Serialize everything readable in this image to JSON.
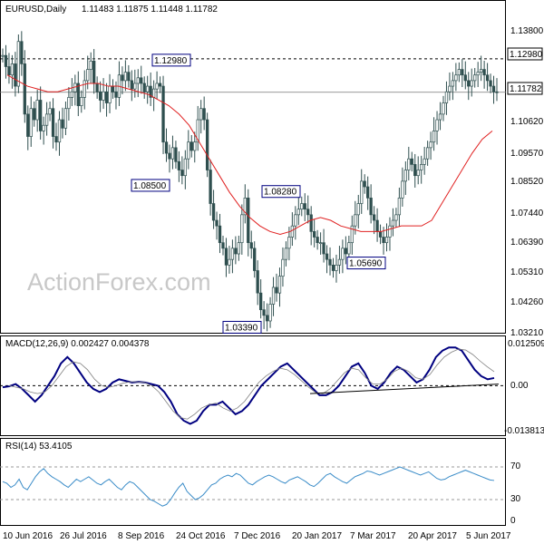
{
  "chart_data": [
    {
      "type": "candlestick",
      "panel": "price",
      "title": "EURUSD,Daily",
      "ohlc_label": "1.11483 1.11875 1.11448 1.11782",
      "watermark": "ActionForex.com",
      "ylim": [
        1.0321,
        1.145
      ],
      "y_ticks": [
        "1.13800",
        "1.12980",
        "1.11782",
        "1.10620",
        "1.09570",
        "1.08520",
        "1.07440",
        "1.06390",
        "1.05310",
        "1.04260",
        "1.03210"
      ],
      "x_ticks": [
        "10 Jun 2016",
        "26 Jul 2016",
        "8 Sep 2016",
        "24 Oct 2016",
        "7 Dec 2016",
        "20 Jan 2017",
        "7 Mar 2017",
        "20 Apr 2017",
        "5 Jun 2017"
      ],
      "resistance_line": 1.1298,
      "price_line": 1.11782,
      "price_label": "1.11782",
      "price_level_label": "1.12980",
      "annotations": [
        {
          "text": "1.12980",
          "value": 1.1298
        },
        {
          "text": "1.08500",
          "value": 1.085
        },
        {
          "text": "1.08280",
          "value": 1.0828
        },
        {
          "text": "1.03390",
          "value": 1.0339
        },
        {
          "text": "1.05690",
          "value": 1.0569
        }
      ],
      "close_series": [
        1.131,
        1.127,
        1.124,
        1.128,
        1.12,
        1.136,
        1.128,
        1.11,
        1.102,
        1.112,
        1.108,
        1.115,
        1.104,
        1.106,
        1.11,
        1.112,
        1.102,
        1.1,
        1.108,
        1.105,
        1.112,
        1.116,
        1.118,
        1.121,
        1.113,
        1.116,
        1.122,
        1.126,
        1.129,
        1.121,
        1.118,
        1.115,
        1.118,
        1.114,
        1.12,
        1.118,
        1.116,
        1.124,
        1.122,
        1.125,
        1.122,
        1.119,
        1.121,
        1.123,
        1.121,
        1.118,
        1.12,
        1.116,
        1.119,
        1.121,
        1.12,
        1.1,
        1.096,
        1.094,
        1.098,
        1.093,
        1.09,
        1.088,
        1.094,
        1.1,
        1.097,
        1.1,
        1.108,
        1.112,
        1.108,
        1.09,
        1.078,
        1.072,
        1.07,
        1.064,
        1.062,
        1.056,
        1.058,
        1.062,
        1.06,
        1.064,
        1.074,
        1.08,
        1.064,
        1.062,
        1.054,
        1.046,
        1.04,
        1.038,
        1.036,
        1.042,
        1.048,
        1.046,
        1.052,
        1.058,
        1.062,
        1.066,
        1.07,
        1.074,
        1.076,
        1.078,
        1.076,
        1.074,
        1.068,
        1.066,
        1.064,
        1.064,
        1.06,
        1.058,
        1.056,
        1.054,
        1.056,
        1.058,
        1.062,
        1.06,
        1.064,
        1.07,
        1.074,
        1.078,
        1.086,
        1.084,
        1.08,
        1.074,
        1.072,
        1.068,
        1.066,
        1.064,
        1.066,
        1.07,
        1.072,
        1.074,
        1.08,
        1.086,
        1.09,
        1.094,
        1.092,
        1.088,
        1.09,
        1.092,
        1.094,
        1.098,
        1.1,
        1.104,
        1.108,
        1.11,
        1.114,
        1.118,
        1.12,
        1.122,
        1.124,
        1.126,
        1.124,
        1.122,
        1.12,
        1.122,
        1.124,
        1.125,
        1.126,
        1.124,
        1.122,
        1.12,
        1.118,
        1.1178
      ],
      "ma_series": [
        1.124,
        1.122,
        1.12,
        1.119,
        1.118,
        1.118,
        1.119,
        1.12,
        1.121,
        1.121,
        1.12,
        1.12,
        1.119,
        1.118,
        1.117,
        1.115,
        1.113,
        1.11,
        1.106,
        1.1,
        1.094,
        1.088,
        1.082,
        1.077,
        1.073,
        1.07,
        1.068,
        1.067,
        1.068,
        1.07,
        1.072,
        1.073,
        1.072,
        1.07,
        1.069,
        1.068,
        1.068,
        1.068,
        1.069,
        1.07,
        1.07,
        1.07,
        1.072,
        1.078,
        1.084,
        1.09,
        1.096,
        1.101,
        1.104
      ],
      "legend": [
        {
          "name": "EURUSD,Daily",
          "color": "#2f4f4f"
        },
        {
          "name": "Moving average",
          "color": "#e02020"
        }
      ]
    },
    {
      "type": "line",
      "panel": "macd",
      "title": "MACD(12,26,9) 0.002427 0.004378",
      "ylim": [
        -0.015,
        0.0135
      ],
      "y_ticks": [
        "0.012509",
        "0.00",
        "-0.013813"
      ],
      "zero_line": 0,
      "macd_series": [
        -0.0005,
        -0.0002,
        0.0005,
        -0.001,
        -0.003,
        -0.005,
        -0.003,
        0.0,
        0.003,
        0.007,
        0.009,
        0.007,
        0.004,
        0.001,
        -0.001,
        -0.002,
        -0.001,
        0.001,
        0.002,
        0.0015,
        0.001,
        0.0012,
        0.001,
        0.0005,
        0.0,
        -0.002,
        -0.005,
        -0.009,
        -0.011,
        -0.012,
        -0.011,
        -0.008,
        -0.006,
        -0.006,
        -0.005,
        -0.007,
        -0.009,
        -0.008,
        -0.006,
        -0.003,
        0.0,
        0.002,
        0.004,
        0.006,
        0.007,
        0.005,
        0.003,
        0.001,
        -0.001,
        -0.003,
        -0.003,
        -0.002,
        0.0,
        0.003,
        0.006,
        0.007,
        0.004,
        0.0,
        -0.001,
        0.001,
        0.004,
        0.006,
        0.005,
        0.003,
        0.001,
        0.002,
        0.005,
        0.009,
        0.011,
        0.012,
        0.012,
        0.011,
        0.008,
        0.005,
        0.003,
        0.002,
        0.0024
      ],
      "signal_series": [
        0.0,
        -0.0005,
        -0.001,
        -0.002,
        -0.0025,
        -0.002,
        0.0,
        0.003,
        0.006,
        0.0075,
        0.007,
        0.005,
        0.002,
        0.0,
        -0.0005,
        0.0,
        0.0008,
        0.0012,
        0.0012,
        0.001,
        0.0,
        -0.002,
        -0.005,
        -0.008,
        -0.01,
        -0.0105,
        -0.009,
        -0.007,
        -0.006,
        -0.0055,
        -0.007,
        -0.008,
        -0.007,
        -0.005,
        -0.002,
        0.001,
        0.003,
        0.0045,
        0.0055,
        0.005,
        0.0035,
        0.0015,
        -0.0005,
        -0.0022,
        -0.0025,
        -0.001,
        0.0015,
        0.004,
        0.0055,
        0.005,
        0.0025,
        0.0005,
        0.0005,
        0.002,
        0.0045,
        0.0055,
        0.0045,
        0.0025,
        0.002,
        0.0035,
        0.0065,
        0.009,
        0.0105,
        0.0115,
        0.0112,
        0.0098,
        0.0078,
        0.006,
        0.0044
      ],
      "trendline": [
        -0.0025,
        0.0005
      ]
    },
    {
      "type": "line",
      "panel": "rsi",
      "title": "RSI(14) 53.4105",
      "ylim": [
        0,
        100
      ],
      "y_ticks": [
        "70",
        "30"
      ],
      "y_tick_labels_extra": [
        "0"
      ],
      "levels": [
        70,
        30
      ],
      "rsi_series": [
        52,
        50,
        45,
        48,
        55,
        45,
        42,
        50,
        58,
        64,
        68,
        62,
        58,
        55,
        52,
        48,
        45,
        50,
        55,
        52,
        55,
        58,
        54,
        50,
        48,
        52,
        55,
        50,
        45,
        42,
        48,
        52,
        50,
        45,
        40,
        35,
        30,
        28,
        25,
        22,
        24,
        30,
        38,
        45,
        50,
        40,
        35,
        30,
        32,
        36,
        42,
        48,
        50,
        55,
        58,
        60,
        58,
        62,
        60,
        55,
        50,
        48,
        52,
        55,
        58,
        60,
        58,
        55,
        52,
        50,
        54,
        56,
        58,
        55,
        52,
        48,
        46,
        50,
        55,
        60,
        62,
        58,
        55,
        52,
        50,
        54,
        58,
        60,
        62,
        65,
        64,
        62,
        60,
        62,
        64,
        66,
        68,
        70,
        68,
        66,
        64,
        62,
        60,
        62,
        64,
        60,
        56,
        54,
        55,
        58,
        60,
        62,
        64,
        66,
        64,
        62,
        60,
        58,
        56,
        54,
        53.4
      ],
      "rsi_label": "53.4105"
    }
  ],
  "colors": {
    "candle": "#2f4f4f",
    "ma": "#e02020",
    "macd": "#000080",
    "signal": "#808080",
    "rsi": "#3a8cc8",
    "annotation_border": "#000080",
    "grid": "#000000"
  }
}
